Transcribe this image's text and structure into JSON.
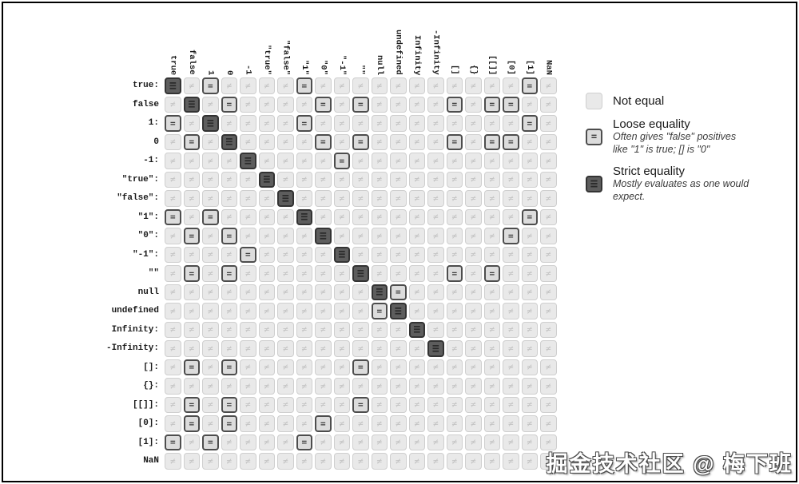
{
  "chart_data": {
    "type": "heatmap",
    "x_categories": [
      "true",
      "false",
      "1",
      "0",
      "-1",
      "\"true\"",
      "\"false\"",
      "\"1\"",
      "\"0\"",
      "\"-1\"",
      "\"\"",
      "null",
      "undefined",
      "Infinity",
      "-Infinity",
      "[]",
      "{}",
      "[[]]",
      "[0]",
      "[1]",
      "NaN"
    ],
    "y_categories": [
      "true:",
      "false",
      "1:",
      "0",
      "-1:",
      "\"true\":",
      "\"false\":",
      "\"1\":",
      "\"0\":",
      "\"-1\":",
      "\"\"",
      "null",
      "undefined",
      "Infinity:",
      "-Infinity:",
      "[]:",
      "{}:",
      "[[]]:",
      "[0]:",
      "[1]:",
      "NaN"
    ],
    "values": [
      "s.l....l...........l.",
      ".s.l....l.l....l.ll..",
      "l.s....l...........l.",
      ".l.s....l.l....l.ll..",
      "....s....l...........",
      ".....s...............",
      "......s..............",
      "l.l....s...........l.",
      ".l.l....s.........l..",
      "....l....s...........",
      ".l.l......s....l.l...",
      "...........sl........",
      "...........ls........",
      ".............s.......",
      "..............s......",
      ".l.l......l..........",
      ".....................",
      ".l.l......l..........",
      ".l.l....l............",
      "l.l....l.............",
      "....................."
    ],
    "cell_codes": {
      ".": "not-equal",
      "l": "loose-equality",
      "s": "strict-equality"
    },
    "symbols": {
      ".": "≠",
      "l": "=",
      "s": "≡"
    },
    "legend_position": "right",
    "grid": "off"
  },
  "legend": {
    "items": [
      {
        "type": "not-equal",
        "label": "Not equal",
        "description": ""
      },
      {
        "type": "loose-equality",
        "label": "Loose equality",
        "description": "Often gives \"false\" positives like \"1\" is true; [] is \"0\""
      },
      {
        "type": "strict-equality",
        "label": "Strict equality",
        "description": "Mostly evaluates as one would expect."
      }
    ]
  },
  "watermark": "掘金技术社区 @ 梅下班",
  "colors": {
    "background": "#ffffff",
    "frame_border": "#000000",
    "not_equal_bg": "#e9e9e9",
    "not_equal_border": "#cfcfcf",
    "not_equal_glyph": "#c4c4c4",
    "loose_bg": "#dcdcdc",
    "loose_border": "#4d4d4d",
    "loose_glyph": "#3d3d3d",
    "strict_bg": "#5d5d5d",
    "strict_border": "#333333",
    "strict_glyph": "#2b2b2b"
  }
}
